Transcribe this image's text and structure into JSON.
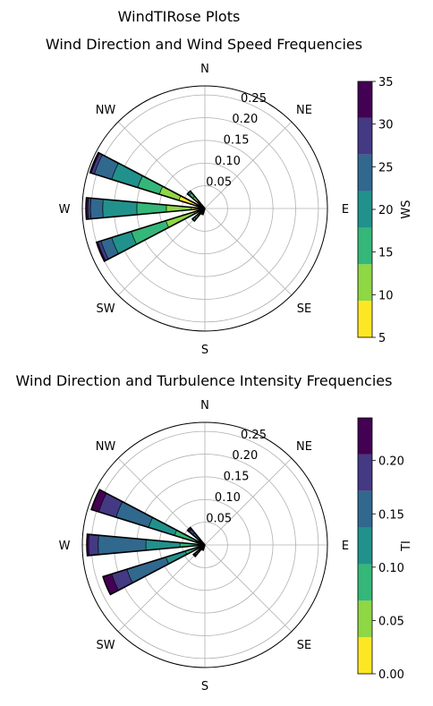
{
  "figure_title": "WindTIRose Plots",
  "chart_data": [
    {
      "type": "polar-bar",
      "title": "Wind Direction and Wind Speed Frequencies",
      "compass_labels": [
        "N",
        "NE",
        "E",
        "SE",
        "S",
        "SW",
        "W",
        "NW"
      ],
      "radial_ticks": [
        0.05,
        0.1,
        0.15,
        0.2,
        0.25
      ],
      "radial_tick_labels": [
        "0.05",
        "0.10",
        "0.15",
        "0.20",
        "0.25"
      ],
      "rmax": 0.27,
      "grid": true,
      "colorbar": {
        "label": "WS",
        "ticks": [
          5,
          10,
          15,
          20,
          25,
          30,
          35
        ],
        "tick_labels": [
          "5",
          "10",
          "15",
          "20",
          "25",
          "30",
          "35"
        ],
        "bins": [
          5,
          7.5,
          10,
          12.5,
          15,
          17.5,
          20,
          22.5,
          25,
          27.5,
          30,
          32.5,
          35
        ],
        "colors": [
          "#fde725",
          "#8fd744",
          "#35b779",
          "#21918c",
          "#31688e",
          "#443983",
          "#440154"
        ]
      },
      "wedges": [
        {
          "direction_deg": 292.5,
          "cum": [
            0.06,
            0.105,
            0.155,
            0.215,
            0.255,
            0.262,
            0.265
          ]
        },
        {
          "direction_deg": 270,
          "cum": [
            0.03,
            0.085,
            0.15,
            0.225,
            0.252,
            0.258,
            0.262
          ]
        },
        {
          "direction_deg": 247.5,
          "cum": [
            0.025,
            0.09,
            0.17,
            0.215,
            0.24,
            0.247,
            0.25
          ]
        },
        {
          "direction_deg": 315,
          "cum": [
            0.02,
            0.035,
            0.045,
            0.05,
            0.05,
            0.05,
            0.05
          ]
        },
        {
          "direction_deg": 225,
          "cum": [
            0.012,
            0.022,
            0.03,
            0.036,
            0.036,
            0.036,
            0.036
          ]
        },
        {
          "direction_deg": 202.5,
          "cum": [
            0.005,
            0.008,
            0.012,
            0.014,
            0.014,
            0.014,
            0.014
          ]
        }
      ]
    },
    {
      "type": "polar-bar",
      "title": "Wind Direction and Turbulence Intensity Frequencies",
      "compass_labels": [
        "N",
        "NE",
        "E",
        "SE",
        "S",
        "SW",
        "W",
        "NW"
      ],
      "radial_ticks": [
        0.05,
        0.1,
        0.15,
        0.2,
        0.25
      ],
      "radial_tick_labels": [
        "0.05",
        "0.10",
        "0.15",
        "0.20",
        "0.25"
      ],
      "rmax": 0.27,
      "grid": true,
      "colorbar": {
        "label": "TI",
        "ticks": [
          0.0,
          0.05,
          0.1,
          0.15,
          0.2
        ],
        "tick_labels": [
          "0.00",
          "0.05",
          "0.10",
          "0.15",
          "0.20"
        ],
        "bins": [
          0.0,
          0.0343,
          0.0686,
          0.1029,
          0.1371,
          0.1714,
          0.2057,
          0.24
        ],
        "colors": [
          "#fde725",
          "#8fd744",
          "#35b779",
          "#21918c",
          "#31688e",
          "#443983",
          "#440154"
        ]
      },
      "wedges": [
        {
          "direction_deg": 292.5,
          "cum": [
            0.002,
            0.02,
            0.07,
            0.13,
            0.205,
            0.245,
            0.262
          ]
        },
        {
          "direction_deg": 270,
          "cum": [
            0.002,
            0.015,
            0.055,
            0.13,
            0.235,
            0.256,
            0.26
          ]
        },
        {
          "direction_deg": 247.5,
          "cum": [
            0.002,
            0.015,
            0.045,
            0.09,
            0.18,
            0.215,
            0.235
          ]
        },
        {
          "direction_deg": 315,
          "cum": [
            0.002,
            0.006,
            0.015,
            0.025,
            0.035,
            0.045,
            0.05
          ]
        },
        {
          "direction_deg": 225,
          "cum": [
            0.001,
            0.004,
            0.01,
            0.018,
            0.025,
            0.03,
            0.033
          ]
        },
        {
          "direction_deg": 202.5,
          "cum": [
            0.001,
            0.003,
            0.006,
            0.009,
            0.011,
            0.012,
            0.012
          ]
        }
      ]
    }
  ]
}
